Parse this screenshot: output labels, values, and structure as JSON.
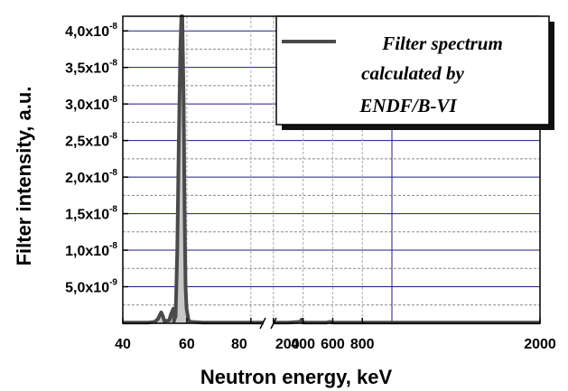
{
  "chart_data": {
    "type": "area",
    "xlabel": "Neutron energy, keV",
    "ylabel": "Filter intensity, a.u.",
    "x_axis": {
      "segments": [
        {
          "range": [
            40,
            84
          ],
          "ticks": [
            40,
            60,
            80
          ]
        },
        {
          "range": [
            195,
            2000
          ],
          "ticks": [
            200,
            400,
            600,
            800,
            2000
          ]
        }
      ],
      "tick_labels": [
        "40",
        "60",
        "80",
        "200",
        "400",
        "600",
        "800",
        "2000"
      ],
      "break_between": [
        84,
        195
      ]
    },
    "y_axis": {
      "range": [
        0,
        4.2e-08
      ],
      "ticks": [
        {
          "value": 5e-09,
          "mantissa": "5,0x10",
          "exp": "-9"
        },
        {
          "value": 1e-08,
          "mantissa": "1,0x10",
          "exp": "-8"
        },
        {
          "value": 1.5e-08,
          "mantissa": "1,5x10",
          "exp": "-8"
        },
        {
          "value": 2e-08,
          "mantissa": "2,0x10",
          "exp": "-8"
        },
        {
          "value": 2.5e-08,
          "mantissa": "2,5x10",
          "exp": "-8"
        },
        {
          "value": 3e-08,
          "mantissa": "3,0x10",
          "exp": "-8"
        },
        {
          "value": 3.5e-08,
          "mantissa": "3,5x10",
          "exp": "-8"
        },
        {
          "value": 4e-08,
          "mantissa": "4,0x10",
          "exp": "-8"
        }
      ]
    },
    "grid": true,
    "legend": {
      "position": "top-right",
      "lines": [
        "Filter spectrum",
        "calculated by",
        "ENDF/B-VI"
      ]
    },
    "series": [
      {
        "name": "Filter spectrum calculated by ENDF/B-VI",
        "color": "#4a4a4a",
        "fill": "#c8c8c8",
        "points": [
          [
            40,
            1e-10
          ],
          [
            44,
            1e-10
          ],
          [
            48,
            1e-10
          ],
          [
            50,
            2e-10
          ],
          [
            51,
            6e-10
          ],
          [
            52,
            1.5e-09
          ],
          [
            52.5,
            1e-09
          ],
          [
            53,
            3e-10
          ],
          [
            54.5,
            4e-10
          ],
          [
            55,
            1.2e-09
          ],
          [
            55.8,
            2e-09
          ],
          [
            56,
            3e-10
          ],
          [
            56.5,
            1e-09
          ],
          [
            57,
            1e-08
          ],
          [
            57.5,
            2.5e-08
          ],
          [
            58,
            3.8e-08
          ],
          [
            58.3,
            4.2e-08
          ],
          [
            58.6,
            4.2e-08
          ],
          [
            59,
            3e-08
          ],
          [
            59.3,
            1.5e-08
          ],
          [
            59.6,
            5e-09
          ],
          [
            59.9,
            2e-09
          ],
          [
            60.5,
            5e-10
          ],
          [
            61,
            2e-10
          ],
          [
            65,
            1e-10
          ],
          [
            84,
            1e-10
          ],
          [
            195,
            1e-10
          ],
          [
            300,
            1e-10
          ],
          [
            380,
            2e-10
          ],
          [
            390,
            5e-10
          ],
          [
            395,
            3e-10
          ],
          [
            400,
            1e-10
          ],
          [
            560,
            1e-10
          ],
          [
            580,
            2e-10
          ],
          [
            600,
            1e-10
          ],
          [
            800,
            1e-10
          ],
          [
            2000,
            1e-10
          ]
        ]
      }
    ]
  }
}
